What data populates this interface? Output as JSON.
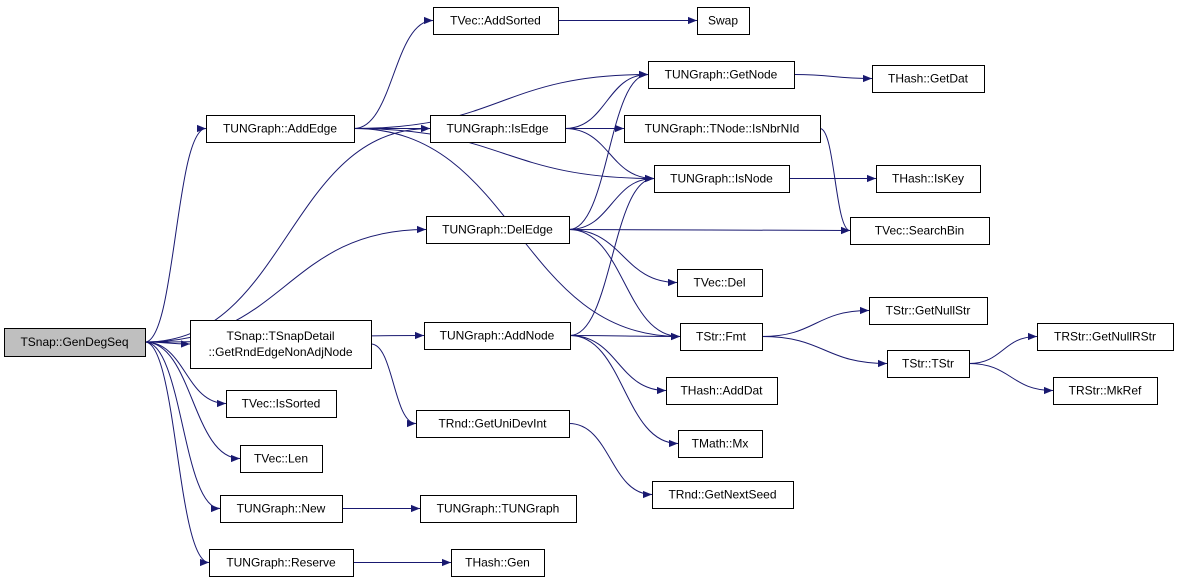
{
  "nodes": [
    {
      "lines": [
        "TSnap::GenDegSeq"
      ]
    },
    {
      "lines": [
        "TUNGraph::AddEdge"
      ]
    },
    {
      "lines": [
        "TVec::AddSorted"
      ]
    },
    {
      "lines": [
        "Swap"
      ]
    },
    {
      "lines": [
        "TUNGraph::GetNode"
      ]
    },
    {
      "lines": [
        "THash::GetDat"
      ]
    },
    {
      "lines": [
        "TUNGraph::IsEdge"
      ]
    },
    {
      "lines": [
        "TUNGraph::TNode::IsNbrNId"
      ]
    },
    {
      "lines": [
        "TUNGraph::IsNode"
      ]
    },
    {
      "lines": [
        "THash::IsKey"
      ]
    },
    {
      "lines": [
        "TUNGraph::DelEdge"
      ]
    },
    {
      "lines": [
        "TVec::SearchBin"
      ]
    },
    {
      "lines": [
        "TVec::Del"
      ]
    },
    {
      "lines": [
        "TStr::GetNullStr"
      ]
    },
    {
      "lines": [
        "TSnap::TSnapDetail",
        "::GetRndEdgeNonAdjNode"
      ]
    },
    {
      "lines": [
        "TUNGraph::AddNode"
      ]
    },
    {
      "lines": [
        "TStr::Fmt"
      ]
    },
    {
      "lines": [
        "TStr::TStr"
      ]
    },
    {
      "lines": [
        "TRStr::GetNullRStr"
      ]
    },
    {
      "lines": [
        "TRStr::MkRef"
      ]
    },
    {
      "lines": [
        "TVec::IsSorted"
      ]
    },
    {
      "lines": [
        "THash::AddDat"
      ]
    },
    {
      "lines": [
        "TRnd::GetUniDevInt"
      ]
    },
    {
      "lines": [
        "TMath::Mx"
      ]
    },
    {
      "lines": [
        "TVec::Len"
      ]
    },
    {
      "lines": [
        "TRnd::GetNextSeed"
      ]
    },
    {
      "lines": [
        "TUNGraph::New"
      ]
    },
    {
      "lines": [
        "TUNGraph::TUNGraph"
      ]
    },
    {
      "lines": [
        "TUNGraph::Reserve"
      ]
    },
    {
      "lines": [
        "THash::Gen"
      ]
    }
  ]
}
